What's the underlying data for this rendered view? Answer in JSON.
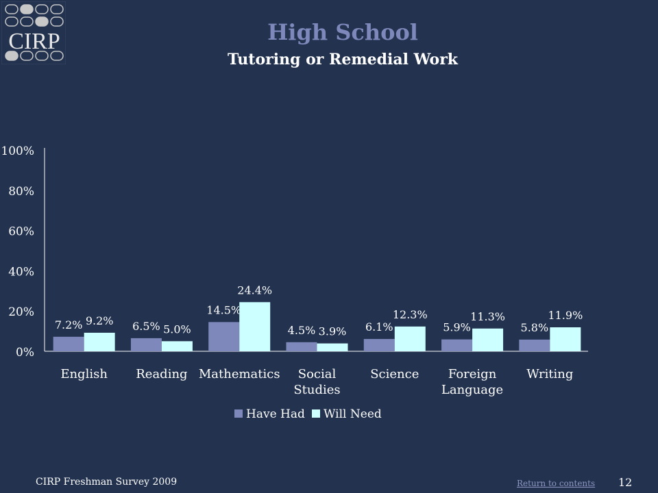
{
  "header": {
    "logo_text": "CIRP",
    "title": "High School",
    "subtitle": "Tutoring or Remedial Work"
  },
  "footer": {
    "survey": "CIRP Freshman Survey 2009",
    "link": "Return to contents",
    "page": "12"
  },
  "colors": {
    "background": "#22324f",
    "series1": "#7f88ba",
    "series2": "#ccffff",
    "title": "#7f88ba"
  },
  "chart_data": {
    "type": "bar",
    "categories": [
      [
        "English"
      ],
      [
        "Reading"
      ],
      [
        "Mathematics"
      ],
      [
        "Social",
        "Studies"
      ],
      [
        "Science"
      ],
      [
        "Foreign",
        "Language"
      ],
      [
        "Writing"
      ]
    ],
    "series": [
      {
        "name": "Have Had",
        "values": [
          7.2,
          6.5,
          14.5,
          4.5,
          6.1,
          5.9,
          5.8
        ],
        "labels": [
          "7.2%",
          "6.5%",
          "14.5%",
          "4.5%",
          "6.1%",
          "5.9%",
          "5.8%"
        ]
      },
      {
        "name": "Will Need",
        "values": [
          9.2,
          5.0,
          24.4,
          3.9,
          12.3,
          11.3,
          11.9
        ],
        "labels": [
          "9.2%",
          "5.0%",
          "24.4%",
          "3.9%",
          "12.3%",
          "11.3%",
          "11.9%"
        ]
      }
    ],
    "yticks": [
      0,
      20,
      40,
      60,
      80,
      100
    ],
    "ytick_labels": [
      "0%",
      "20%",
      "40%",
      "60%",
      "80%",
      "100%"
    ],
    "ylim": [
      0,
      100
    ],
    "legend_position": "bottom"
  }
}
